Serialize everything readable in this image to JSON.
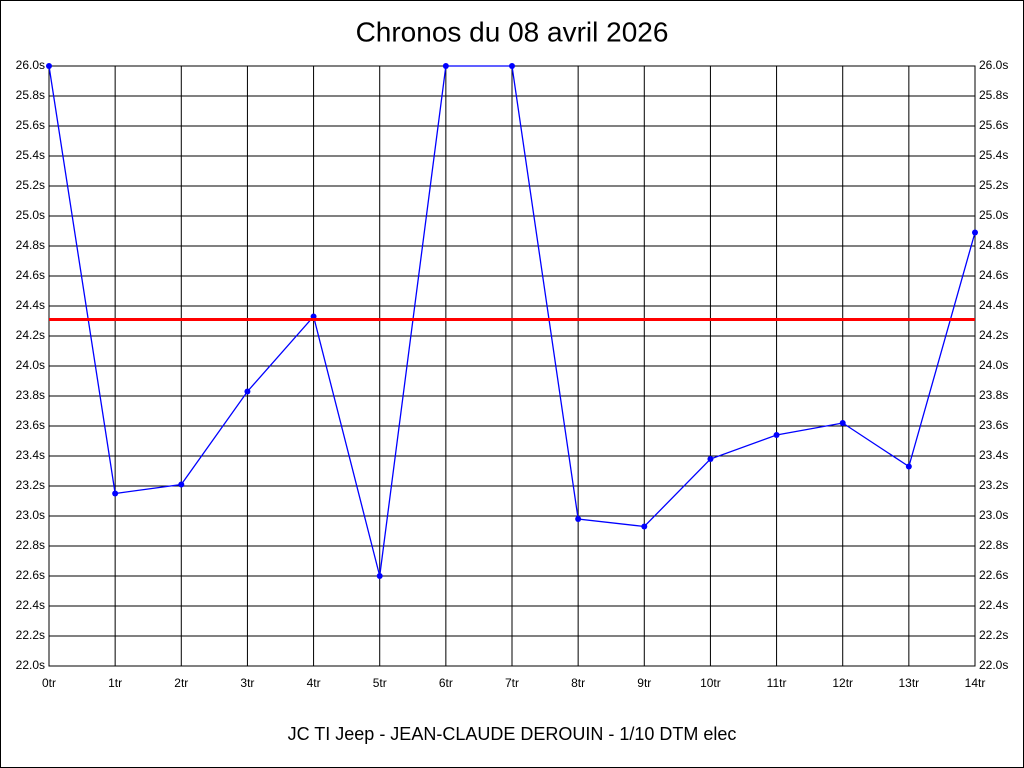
{
  "chart_data": {
    "type": "line",
    "title": "Chronos du 08 avril 2026",
    "subtitle": "JC TI Jeep - JEAN-CLAUDE DEROUIN - 1/10 DTM elec",
    "categories": [
      "0tr",
      "1tr",
      "2tr",
      "3tr",
      "4tr",
      "5tr",
      "6tr",
      "7tr",
      "8tr",
      "9tr",
      "10tr",
      "11tr",
      "12tr",
      "13tr",
      "14tr"
    ],
    "series": [
      {
        "color": "#0000ff",
        "values": [
          26.0,
          23.15,
          23.21,
          23.83,
          24.33,
          22.6,
          26.0,
          26.0,
          22.98,
          22.93,
          23.38,
          23.54,
          23.62,
          23.33,
          24.89
        ]
      }
    ],
    "reference_line": {
      "value": 24.31,
      "color": "#ff0000"
    },
    "ylim": [
      22.0,
      26.0
    ],
    "yticks": [
      {
        "value": 22.0,
        "label": "22.0s"
      },
      {
        "value": 22.2,
        "label": "22.2s"
      },
      {
        "value": 22.4,
        "label": "22.4s"
      },
      {
        "value": 22.6,
        "label": "22.6s"
      },
      {
        "value": 22.8,
        "label": "22.8s"
      },
      {
        "value": 23.0,
        "label": "23.0s"
      },
      {
        "value": 23.2,
        "label": "23.2s"
      },
      {
        "value": 23.4,
        "label": "23.4s"
      },
      {
        "value": 23.6,
        "label": "23.6s"
      },
      {
        "value": 23.8,
        "label": "23.8s"
      },
      {
        "value": 24.0,
        "label": "24.0s"
      },
      {
        "value": 24.2,
        "label": "24.2s"
      },
      {
        "value": 24.4,
        "label": "24.4s"
      },
      {
        "value": 24.6,
        "label": "24.6s"
      },
      {
        "value": 24.8,
        "label": "24.8s"
      },
      {
        "value": 25.0,
        "label": "25.0s"
      },
      {
        "value": 25.2,
        "label": "25.2s"
      },
      {
        "value": 25.4,
        "label": "25.4s"
      },
      {
        "value": 25.6,
        "label": "25.6s"
      },
      {
        "value": 25.8,
        "label": "25.8s"
      },
      {
        "value": 26.0,
        "label": "26.0s"
      }
    ],
    "grid": true
  }
}
